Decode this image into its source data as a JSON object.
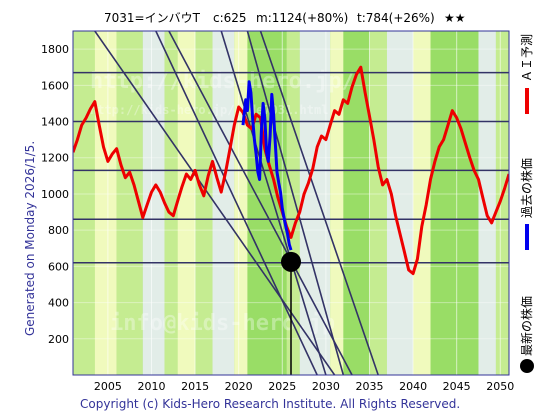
{
  "header": {
    "code_name": "7031=インバウT",
    "current": "c:625",
    "max": "m:1124(+80%)",
    "target": "t:784(+26%)",
    "stars": "★★"
  },
  "side_note": "Generated on Monday 2026/1/5.",
  "footer": "Copyright (c) Kids-Hero Research Institute. All Rights Reserved.",
  "watermarks": [
    "http://kids-hero.jp/",
    "http://kids-hero.jp/code7031.html",
    "info@kids-hero.jp"
  ],
  "legend": {
    "ai_forecast": "ＡＩ予測",
    "past_price": "過去の株価",
    "latest_price": "最新の株価"
  },
  "colors": {
    "ai_forecast": "#ee0000",
    "past_price": "#0000ee",
    "latest_marker": "#000000",
    "band_green": "#99dd66",
    "band_light_green": "#ccee99",
    "band_yellow": "#ffffcc",
    "band_white": "#eef0ff",
    "grid": "#333366",
    "frame": "#333399"
  },
  "chart_data": {
    "type": "line",
    "xlim": [
      2001,
      2051
    ],
    "ylim": [
      0,
      1900
    ],
    "xticks": [
      2005,
      2010,
      2015,
      2020,
      2025,
      2030,
      2035,
      2040,
      2045,
      2050
    ],
    "yticks": [
      200,
      400,
      600,
      800,
      1000,
      1200,
      1400,
      1600,
      1800
    ],
    "hlines": [
      620,
      860,
      1130,
      1400,
      1670
    ],
    "grid": true,
    "legend_position": "right",
    "latest_point": {
      "x": 2026.0,
      "y": 625
    },
    "trend_lines": [
      [
        [
          2003.5,
          1900
        ],
        [
          2031.0,
          0
        ]
      ],
      [
        [
          2012.0,
          1900
        ],
        [
          2033.0,
          0
        ]
      ],
      [
        [
          2018.0,
          1900
        ],
        [
          2030.0,
          0
        ]
      ],
      [
        [
          2021.0,
          1900
        ],
        [
          2032.0,
          0
        ]
      ],
      [
        [
          2022.5,
          1900
        ],
        [
          2036.0,
          0
        ]
      ],
      [
        [
          2010.5,
          1900
        ],
        [
          2029.0,
          0
        ]
      ]
    ],
    "series": [
      {
        "name": "ＡＩ予測",
        "values": [
          [
            2001.0,
            1230
          ],
          [
            2001.5,
            1300
          ],
          [
            2002.0,
            1380
          ],
          [
            2002.5,
            1420
          ],
          [
            2003.0,
            1470
          ],
          [
            2003.5,
            1510
          ],
          [
            2004.0,
            1380
          ],
          [
            2004.5,
            1260
          ],
          [
            2005.0,
            1180
          ],
          [
            2005.5,
            1220
          ],
          [
            2006.0,
            1250
          ],
          [
            2006.5,
            1160
          ],
          [
            2007.0,
            1090
          ],
          [
            2007.5,
            1120
          ],
          [
            2008.0,
            1050
          ],
          [
            2008.5,
            960
          ],
          [
            2009.0,
            870
          ],
          [
            2009.5,
            940
          ],
          [
            2010.0,
            1010
          ],
          [
            2010.5,
            1050
          ],
          [
            2011.0,
            1010
          ],
          [
            2011.5,
            950
          ],
          [
            2012.0,
            900
          ],
          [
            2012.5,
            880
          ],
          [
            2013.0,
            960
          ],
          [
            2013.5,
            1040
          ],
          [
            2014.0,
            1110
          ],
          [
            2014.5,
            1080
          ],
          [
            2015.0,
            1130
          ],
          [
            2015.5,
            1050
          ],
          [
            2016.0,
            990
          ],
          [
            2016.5,
            1100
          ],
          [
            2017.0,
            1180
          ],
          [
            2017.5,
            1090
          ],
          [
            2018.0,
            1010
          ],
          [
            2018.5,
            1120
          ],
          [
            2019.0,
            1250
          ],
          [
            2019.5,
            1380
          ],
          [
            2020.0,
            1480
          ],
          [
            2020.5,
            1450
          ],
          [
            2021.0,
            1380
          ],
          [
            2021.5,
            1360
          ],
          [
            2022.0,
            1440
          ],
          [
            2022.5,
            1420
          ],
          [
            2023.0,
            1250
          ],
          [
            2023.5,
            1160
          ],
          [
            2024.0,
            1080
          ],
          [
            2024.5,
            980
          ],
          [
            2025.0,
            900
          ],
          [
            2025.5,
            820
          ],
          [
            2026.0,
            760
          ],
          [
            2026.5,
            840
          ],
          [
            2027.0,
            900
          ],
          [
            2027.5,
            1000
          ],
          [
            2028.0,
            1060
          ],
          [
            2028.5,
            1140
          ],
          [
            2029.0,
            1260
          ],
          [
            2029.5,
            1320
          ],
          [
            2030.0,
            1300
          ],
          [
            2030.5,
            1380
          ],
          [
            2031.0,
            1460
          ],
          [
            2031.5,
            1440
          ],
          [
            2032.0,
            1520
          ],
          [
            2032.5,
            1500
          ],
          [
            2033.0,
            1590
          ],
          [
            2033.5,
            1660
          ],
          [
            2034.0,
            1700
          ],
          [
            2034.5,
            1560
          ],
          [
            2035.0,
            1430
          ],
          [
            2035.5,
            1300
          ],
          [
            2036.0,
            1150
          ],
          [
            2036.5,
            1050
          ],
          [
            2037.0,
            1080
          ],
          [
            2037.5,
            1000
          ],
          [
            2038.0,
            880
          ],
          [
            2038.5,
            780
          ],
          [
            2039.0,
            680
          ],
          [
            2039.5,
            580
          ],
          [
            2040.0,
            560
          ],
          [
            2040.5,
            640
          ],
          [
            2041.0,
            820
          ],
          [
            2041.5,
            940
          ],
          [
            2042.0,
            1080
          ],
          [
            2042.5,
            1180
          ],
          [
            2043.0,
            1260
          ],
          [
            2043.5,
            1300
          ],
          [
            2044.0,
            1380
          ],
          [
            2044.5,
            1460
          ],
          [
            2045.0,
            1420
          ],
          [
            2045.5,
            1360
          ],
          [
            2046.0,
            1280
          ],
          [
            2046.5,
            1200
          ],
          [
            2047.0,
            1130
          ],
          [
            2047.5,
            1080
          ],
          [
            2048.0,
            980
          ],
          [
            2048.5,
            880
          ],
          [
            2049.0,
            840
          ],
          [
            2049.5,
            900
          ],
          [
            2050.0,
            960
          ],
          [
            2050.5,
            1030
          ],
          [
            2051.0,
            1110
          ]
        ]
      },
      {
        "name": "過去の株価",
        "values": [
          [
            2020.5,
            1380
          ],
          [
            2020.8,
            1520
          ],
          [
            2021.0,
            1460
          ],
          [
            2021.2,
            1620
          ],
          [
            2021.4,
            1560
          ],
          [
            2021.6,
            1420
          ],
          [
            2021.8,
            1300
          ],
          [
            2022.0,
            1220
          ],
          [
            2022.2,
            1120
          ],
          [
            2022.4,
            1080
          ],
          [
            2022.6,
            1350
          ],
          [
            2022.8,
            1500
          ],
          [
            2023.0,
            1420
          ],
          [
            2023.2,
            1230
          ],
          [
            2023.4,
            1180
          ],
          [
            2023.6,
            1320
          ],
          [
            2023.8,
            1550
          ],
          [
            2024.0,
            1440
          ],
          [
            2024.2,
            1280
          ],
          [
            2024.4,
            1120
          ],
          [
            2024.6,
            1060
          ],
          [
            2024.8,
            1010
          ],
          [
            2025.0,
            920
          ],
          [
            2025.2,
            870
          ],
          [
            2025.4,
            820
          ],
          [
            2025.6,
            780
          ],
          [
            2025.8,
            720
          ],
          [
            2026.0,
            690
          ]
        ]
      }
    ]
  }
}
